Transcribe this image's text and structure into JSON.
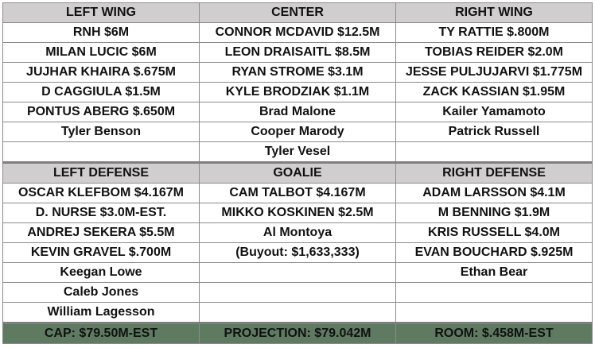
{
  "forwards": {
    "headers": {
      "left": "LEFT WING",
      "center": "CENTER",
      "right": "RIGHT WING"
    },
    "rows": [
      {
        "left": "RNH $6M",
        "center": "CONNOR MCDAVID $12.5M",
        "right": "TY RATTIE $.800M"
      },
      {
        "left": "MILAN LUCIC $6M",
        "center": "LEON DRAISAITL $8.5M",
        "right": "TOBIAS REIDER $2.0M"
      },
      {
        "left": "JUJHAR KHAIRA $.675M",
        "center": "RYAN STROME $3.1M",
        "right": "JESSE PULJUJARVI $1.775M"
      },
      {
        "left": "D CAGGIULA $1.5M",
        "center": "KYLE BRODZIAK $1.1M",
        "right": "ZACK KASSIAN $1.95M"
      },
      {
        "left": "PONTUS ABERG $.650M",
        "center": "Brad Malone",
        "right": "Kailer Yamamoto"
      },
      {
        "left": "Tyler Benson",
        "center": "Cooper Marody",
        "right": "Patrick Russell"
      },
      {
        "left": "",
        "center": "Tyler Vesel",
        "right": ""
      }
    ]
  },
  "defense": {
    "headers": {
      "left": "LEFT DEFENSE",
      "center": "GOALIE",
      "right": "RIGHT DEFENSE"
    },
    "rows": [
      {
        "left": "OSCAR KLEFBOM $4.167M",
        "center": "CAM TALBOT $4.167M",
        "right": "ADAM LARSSON $4.1M"
      },
      {
        "left": "D. NURSE $3.0M-EST.",
        "center": "MIKKO KOSKINEN $2.5M",
        "right": "M BENNING $1.9M"
      },
      {
        "left": "ANDREJ SEKERA $5.5M",
        "center": "Al Montoya",
        "right": "KRIS RUSSELL $4.0M"
      },
      {
        "left": "KEVIN GRAVEL $.700M",
        "center": "(Buyout: $1,633,333)",
        "right": "EVAN BOUCHARD $.925M"
      },
      {
        "left": "Keegan Lowe",
        "center": "",
        "right": "Ethan Bear"
      },
      {
        "left": "Caleb Jones",
        "center": "",
        "right": ""
      },
      {
        "left": "William Lagesson",
        "center": "",
        "right": ""
      }
    ]
  },
  "footer": {
    "cap": "CAP: $79.50M-EST",
    "projection": "PROJECTION: $79.042M",
    "room": "ROOM: $.458M-EST"
  },
  "colors": {
    "header_bg": "#d0cece",
    "footer_bg": "#5e7b61",
    "prospect_text": "#1f5fa8",
    "buyout_text": "#e8141c",
    "grid": "#8c8c8c"
  }
}
